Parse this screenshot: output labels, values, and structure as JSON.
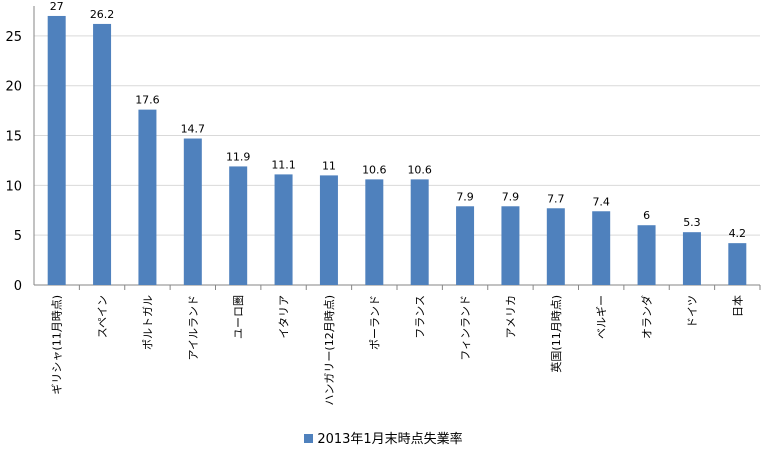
{
  "chart_data": {
    "type": "bar",
    "categories": [
      "ギリシャ(11月時点)",
      "スペイン",
      "ポルトガル",
      "アイルランド",
      "ユーロ圏",
      "イタリア",
      "ハンガリー(12月時点)",
      "ポーランド",
      "フランス",
      "フィンランド",
      "アメリカ",
      "英国(11月時点)",
      "ベルギー",
      "オランダ",
      "ドイツ",
      "日本"
    ],
    "series": [
      {
        "name": "2013年1月末時点失業率",
        "values": [
          27,
          26.2,
          17.6,
          14.7,
          11.9,
          11.1,
          11,
          10.6,
          10.6,
          7.9,
          7.9,
          7.7,
          7.4,
          6,
          5.3,
          4.2
        ]
      }
    ],
    "ylim": [
      0,
      28
    ],
    "yticks": [
      0,
      5,
      10,
      15,
      20,
      25
    ],
    "grid": "horizontal",
    "legend": "bottom",
    "colors": {
      "bar": "#4F81BD",
      "grid": "#D9D9D9",
      "axis": "#868686"
    }
  }
}
